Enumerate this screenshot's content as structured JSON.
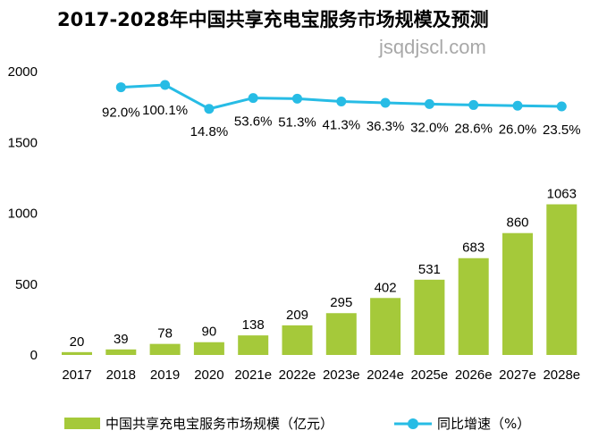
{
  "title": "2017-2028年中国共享充电宝服务市场规模及预测",
  "watermark": "jsqdjscl.com",
  "colors": {
    "bar": "#a5c93a",
    "line": "#27bce5"
  },
  "chart_data": {
    "type": "bar+line",
    "categories": [
      "2017",
      "2018",
      "2019",
      "2020",
      "2021e",
      "2022e",
      "2023e",
      "2024e",
      "2025e",
      "2026e",
      "2027e",
      "2028e"
    ],
    "series": [
      {
        "name": "中国共享充电宝服务市场规模（亿元）",
        "type": "bar",
        "values": [
          20,
          39,
          78,
          90,
          138,
          209,
          295,
          402,
          531,
          683,
          860,
          1063
        ],
        "labels": [
          "20",
          "39",
          "78",
          "90",
          "138",
          "209",
          "295",
          "402",
          "531",
          "683",
          "860",
          "1063"
        ]
      },
      {
        "name": "同比增速（%）",
        "type": "line",
        "values": [
          null,
          92.0,
          100.1,
          14.8,
          53.6,
          51.3,
          41.3,
          36.3,
          32.0,
          28.6,
          26.0,
          23.5
        ],
        "labels": [
          "",
          "92.0%",
          "100.1%",
          "14.8%",
          "53.6%",
          "51.3%",
          "41.3%",
          "36.3%",
          "32.0%",
          "28.6%",
          "26.0%",
          "23.5%"
        ]
      }
    ],
    "y_ticks": [
      "0",
      "500",
      "1000",
      "1500",
      "2000"
    ],
    "ylim": [
      0,
      2000
    ],
    "grid": false,
    "legend_position": "bottom"
  }
}
